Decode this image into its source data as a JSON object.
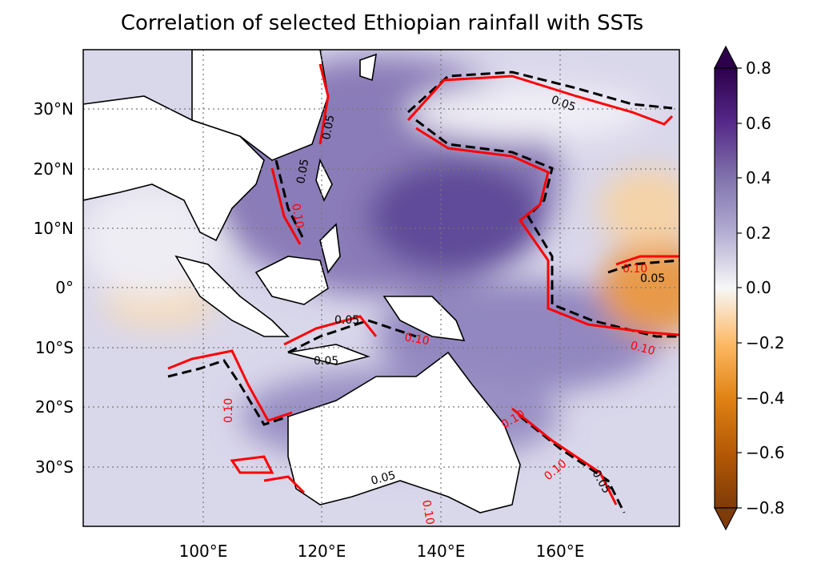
{
  "title": "Correlation of selected Ethiopian rainfall with SSTs",
  "map": {
    "lon_ticks": [
      "100°E",
      "120°E",
      "140°E",
      "160°E"
    ],
    "lat_ticks": [
      "30°N",
      "20°N",
      "10°N",
      "0°",
      "10°S",
      "20°S",
      "30°S"
    ],
    "gridlines": true
  },
  "colorbar": {
    "ticks": [
      "0.8",
      "0.6",
      "0.4",
      "0.2",
      "0.0",
      "−0.2",
      "−0.4",
      "−0.6",
      "−0.8"
    ],
    "vmin": -0.8,
    "vmax": 0.8,
    "extend": "both",
    "colormap": "PuOr",
    "color_max": "#2d004b",
    "color_mid": "#f7f7f7",
    "color_min": "#7f3b08"
  },
  "contours": [
    {
      "level_label": "0.05",
      "color": "#000000",
      "style": "dashed"
    },
    {
      "level_label": "0.10",
      "color": "#ff0000",
      "style": "solid"
    }
  ],
  "contour_labels": [
    "0.05",
    "0.05",
    "0.05",
    "0.05",
    "0.05",
    "0.05",
    "0.05",
    "0.05",
    "0.10",
    "0.10",
    "0.10",
    "0.10",
    "0.10",
    "0.10",
    "0.10",
    "0.10"
  ]
}
